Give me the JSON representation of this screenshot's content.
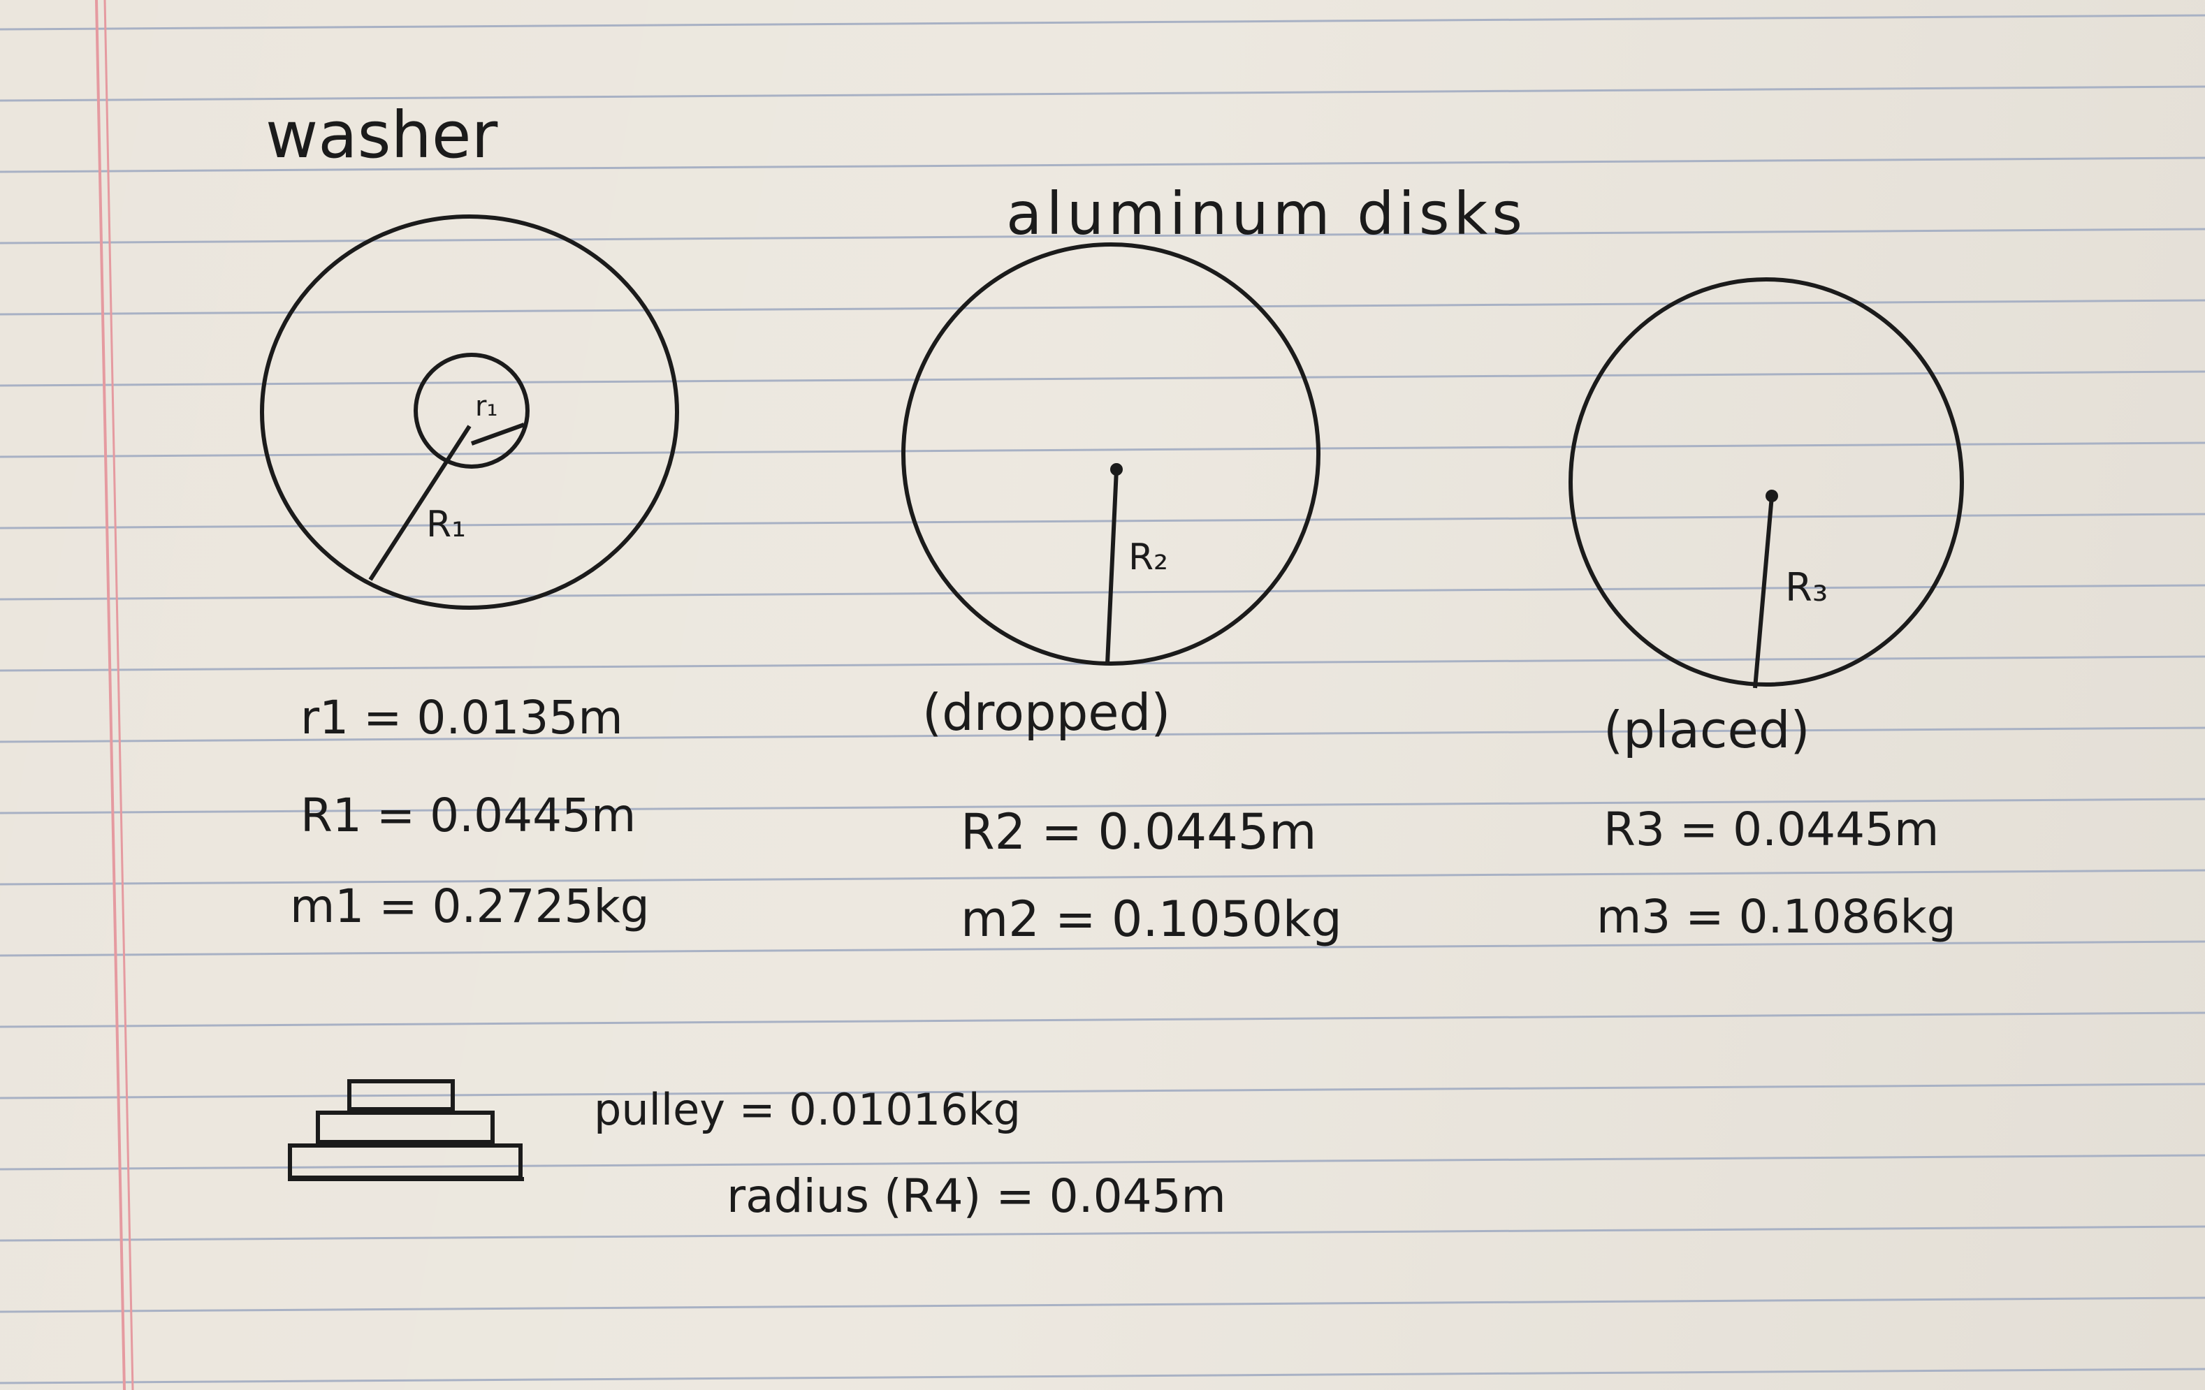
{
  "page": {
    "rule_color": "#a8b1c4",
    "margin_line_color": "#e59aa0",
    "ink_color": "#1b1b1b"
  },
  "labels": {
    "washer_title": "washer",
    "disks_title": "aluminum disks",
    "r_small": "r₁",
    "R1": "R₁",
    "R2": "R₂",
    "R3": "R₃"
  },
  "washer": {
    "r1": "r1 = 0.0135m",
    "R1": "R1 = 0.0445m",
    "m1": "m1 = 0.2725kg"
  },
  "disk2": {
    "note": "(dropped)",
    "R2": "R2 = 0.0445m",
    "m2": "m2 = 0.1050kg"
  },
  "disk3": {
    "note": "(placed)",
    "R3": "R3 = 0.0445m",
    "m3": "m3 = 0.1086kg"
  },
  "pulley": {
    "mass": "pulley = 0.01016kg",
    "radius": "radius (R4) = 0.045m"
  }
}
